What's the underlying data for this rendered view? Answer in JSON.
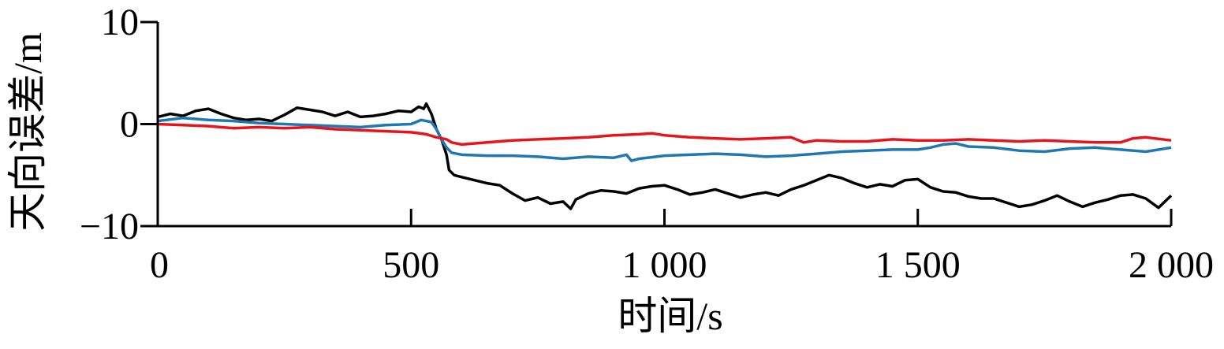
{
  "chart_data": {
    "type": "line",
    "xlabel": "时间/s",
    "ylabel": "天向误差/m",
    "xlim": [
      0,
      2000
    ],
    "ylim": [
      -10,
      10
    ],
    "x_ticks": [
      0,
      500,
      1000,
      1500,
      2000
    ],
    "x_tick_labels": [
      "0",
      "500",
      "1 000",
      "1 500",
      "2 000"
    ],
    "y_ticks": [
      -10,
      0,
      10
    ],
    "y_tick_labels": [
      "−10",
      "0",
      "10"
    ],
    "grid": false,
    "legend": "none",
    "series": [
      {
        "color": "#000000",
        "x": [
          0,
          25,
          50,
          75,
          100,
          125,
          150,
          175,
          200,
          225,
          250,
          275,
          300,
          325,
          350,
          375,
          400,
          425,
          450,
          475,
          500,
          515,
          525,
          530,
          540,
          550,
          560,
          570,
          575,
          585,
          600,
          625,
          650,
          675,
          700,
          725,
          750,
          775,
          800,
          815,
          825,
          850,
          875,
          900,
          925,
          950,
          975,
          1000,
          1025,
          1050,
          1075,
          1100,
          1125,
          1150,
          1175,
          1200,
          1225,
          1250,
          1275,
          1300,
          1325,
          1350,
          1375,
          1400,
          1425,
          1450,
          1475,
          1500,
          1525,
          1550,
          1575,
          1600,
          1625,
          1650,
          1675,
          1700,
          1725,
          1750,
          1775,
          1800,
          1825,
          1850,
          1875,
          1900,
          1925,
          1950,
          1975,
          2000
        ],
        "y": [
          0.7,
          1.0,
          0.8,
          1.3,
          1.5,
          1.0,
          0.6,
          0.4,
          0.5,
          0.3,
          0.9,
          1.6,
          1.4,
          1.2,
          0.8,
          1.2,
          0.7,
          0.8,
          1.0,
          1.3,
          1.2,
          1.7,
          1.5,
          2.0,
          1.0,
          -0.5,
          -1.5,
          -3.0,
          -4.5,
          -5.0,
          -5.2,
          -5.5,
          -5.8,
          -6.0,
          -6.8,
          -7.5,
          -7.2,
          -7.8,
          -7.6,
          -8.3,
          -7.4,
          -6.8,
          -6.5,
          -6.6,
          -6.8,
          -6.3,
          -6.1,
          -6.0,
          -6.4,
          -6.9,
          -6.7,
          -6.4,
          -6.8,
          -7.2,
          -6.9,
          -6.7,
          -7.0,
          -6.4,
          -6.0,
          -5.5,
          -5.0,
          -5.3,
          -5.8,
          -6.2,
          -5.9,
          -6.1,
          -5.5,
          -5.4,
          -6.2,
          -6.6,
          -6.7,
          -7.1,
          -7.3,
          -7.3,
          -7.7,
          -8.1,
          -7.9,
          -7.5,
          -7.0,
          -7.6,
          -8.1,
          -7.7,
          -7.4,
          -7.0,
          -6.9,
          -7.3,
          -8.2,
          -7.0
        ]
      },
      {
        "color": "#1f77b4",
        "x": [
          0,
          50,
          100,
          150,
          200,
          250,
          300,
          350,
          400,
          450,
          500,
          520,
          530,
          540,
          550,
          560,
          570,
          580,
          600,
          650,
          700,
          750,
          800,
          850,
          900,
          925,
          935,
          950,
          1000,
          1050,
          1100,
          1150,
          1200,
          1250,
          1300,
          1350,
          1400,
          1450,
          1500,
          1525,
          1550,
          1575,
          1600,
          1650,
          1700,
          1750,
          1800,
          1850,
          1900,
          1950,
          2000
        ],
        "y": [
          0.3,
          0.6,
          0.4,
          0.3,
          0.1,
          0.0,
          -0.1,
          -0.2,
          -0.3,
          -0.1,
          0.0,
          0.4,
          0.3,
          0.2,
          -0.5,
          -1.5,
          -2.3,
          -2.8,
          -3.0,
          -3.1,
          -3.1,
          -3.2,
          -3.4,
          -3.2,
          -3.3,
          -3.0,
          -3.6,
          -3.4,
          -3.1,
          -3.0,
          -2.9,
          -3.0,
          -3.2,
          -3.1,
          -2.9,
          -2.7,
          -2.6,
          -2.5,
          -2.5,
          -2.3,
          -2.0,
          -1.9,
          -2.2,
          -2.3,
          -2.6,
          -2.7,
          -2.4,
          -2.3,
          -2.5,
          -2.7,
          -2.3
        ]
      },
      {
        "color": "#e8141b",
        "x": [
          0,
          50,
          100,
          150,
          200,
          250,
          300,
          350,
          400,
          450,
          500,
          530,
          550,
          570,
          580,
          600,
          650,
          700,
          750,
          800,
          850,
          900,
          950,
          975,
          1000,
          1050,
          1100,
          1150,
          1200,
          1250,
          1275,
          1300,
          1350,
          1400,
          1450,
          1500,
          1550,
          1600,
          1650,
          1700,
          1750,
          1800,
          1850,
          1900,
          1925,
          1950,
          2000
        ],
        "y": [
          0.0,
          -0.1,
          -0.2,
          -0.4,
          -0.3,
          -0.4,
          -0.3,
          -0.5,
          -0.6,
          -0.7,
          -0.8,
          -1.0,
          -1.3,
          -1.5,
          -1.8,
          -2.0,
          -1.8,
          -1.6,
          -1.5,
          -1.4,
          -1.3,
          -1.1,
          -1.0,
          -0.9,
          -1.1,
          -1.3,
          -1.4,
          -1.5,
          -1.4,
          -1.3,
          -1.8,
          -1.6,
          -1.7,
          -1.7,
          -1.5,
          -1.6,
          -1.6,
          -1.5,
          -1.6,
          -1.7,
          -1.6,
          -1.7,
          -1.8,
          -1.8,
          -1.4,
          -1.3,
          -1.6
        ]
      }
    ]
  }
}
